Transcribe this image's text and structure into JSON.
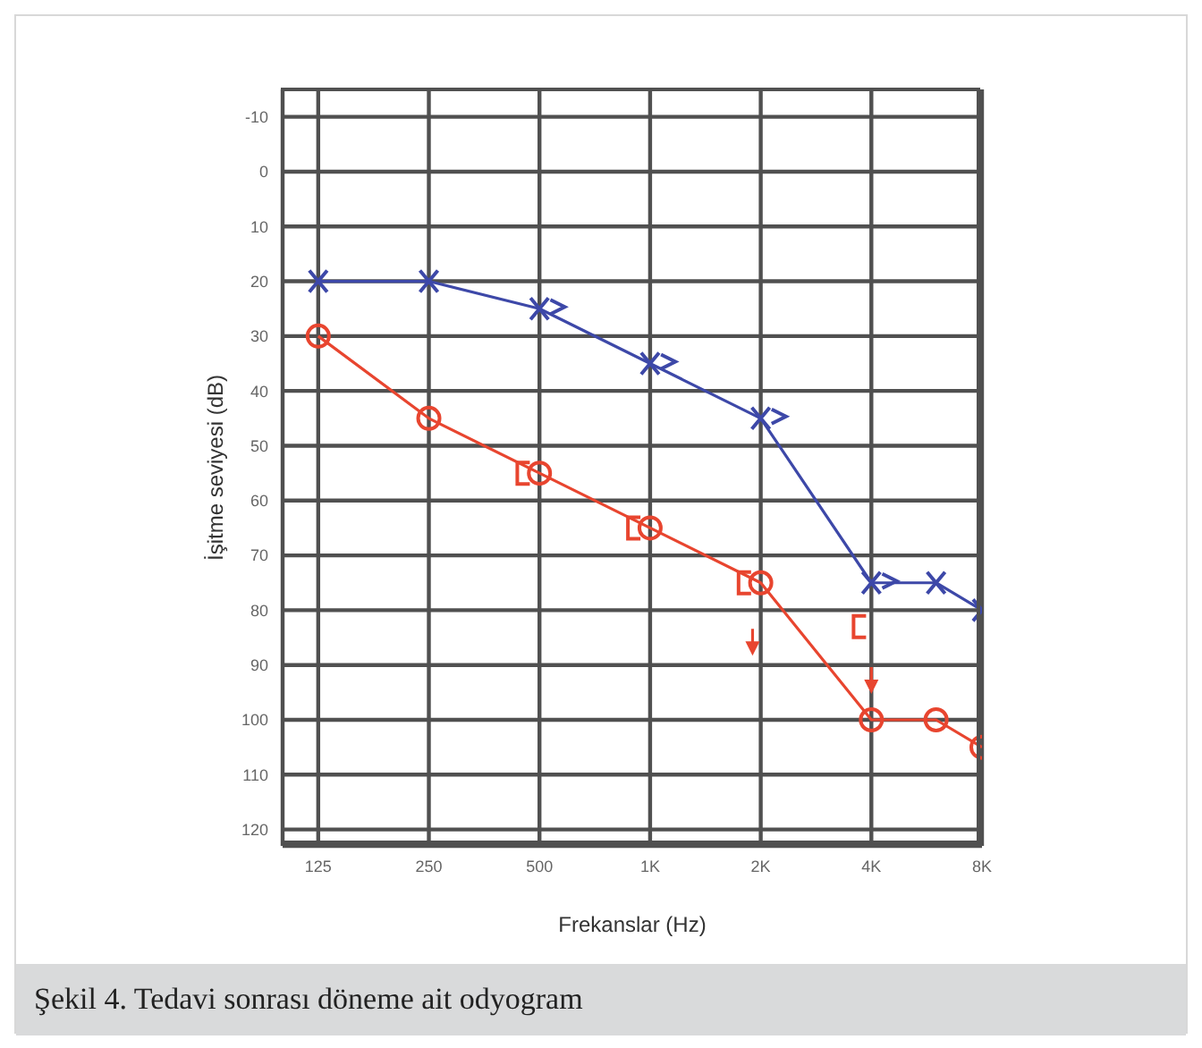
{
  "chart_data": {
    "type": "line",
    "xlabel": "Frekanslar (Hz)",
    "ylabel": "İşitme seviyesi (dB)",
    "annotations": [
      "Şekil 4. Tedavi sonrası döneme ait odyogram"
    ],
    "log": "x",
    "grid": true,
    "xlim": [
      100,
      8000
    ],
    "xticks": [
      125,
      250,
      500,
      {
        "value": 1000,
        "label": "1K"
      },
      {
        "value": 2000,
        "label": "2K"
      },
      {
        "value": 4000,
        "label": "4K"
      },
      {
        "value": 8000,
        "label": "8K"
      }
    ],
    "ylim": [
      123,
      -15
    ],
    "yticks": [
      -10,
      0,
      10,
      20,
      30,
      40,
      50,
      60,
      70,
      80,
      90,
      100,
      110,
      120
    ],
    "series": [
      {
        "color": "#e8452f",
        "marker": "circle",
        "line_style": "solid",
        "x": [
          125,
          250,
          500,
          1000,
          2000,
          4000,
          6000,
          8000
        ],
        "values": [
          30,
          45,
          55,
          65,
          75,
          100,
          100,
          105
        ]
      },
      {
        "color": "#3d48a8",
        "marker": "cross",
        "line_style": "solid",
        "x": [
          125,
          250,
          500,
          1000,
          2000,
          4000,
          6000,
          8000
        ],
        "values": [
          20,
          20,
          25,
          35,
          45,
          75,
          75,
          80
        ]
      },
      {
        "type": "scatter",
        "color": "#e8452f",
        "x": [
          450,
          900,
          1800,
          3700
        ],
        "values": [
          55,
          65,
          75,
          83
        ]
      },
      {
        "type": "scatter",
        "color": "#3d48a8",
        "x": [
          560,
          1120,
          2240,
          4480
        ],
        "values": [
          25,
          35,
          45,
          75
        ]
      },
      {
        "type": "scatter",
        "color": "#e8452f",
        "marker": "triangle",
        "x": [
          1900,
          4000
        ],
        "values": [
          86,
          93
        ]
      }
    ]
  }
}
